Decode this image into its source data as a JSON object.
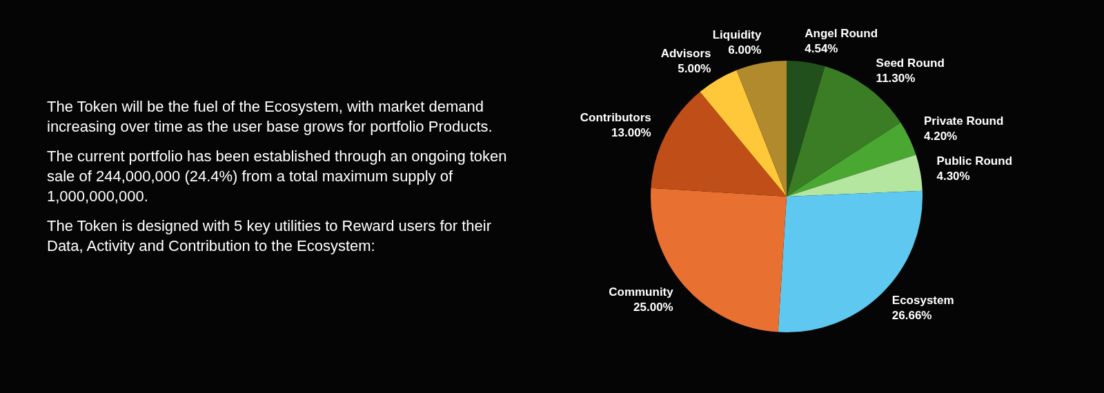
{
  "chart_data": {
    "type": "pie",
    "categories": [
      "Angel Round",
      "Seed Round",
      "Private Round",
      "Public Round",
      "Ecosystem",
      "Community",
      "Contributors",
      "Advisors",
      "Liquidity"
    ],
    "values": [
      4.54,
      11.3,
      4.2,
      4.3,
      26.66,
      25.0,
      13.0,
      5.0,
      6.0
    ],
    "value_labels": [
      "4.54%",
      "11.30%",
      "4.20%",
      "4.30%",
      "26.66%",
      "25.00%",
      "13.00%",
      "5.00%",
      "6.00%"
    ],
    "colors": [
      "#22501c",
      "#3a7d24",
      "#4aa832",
      "#b5e6a0",
      "#5ec8f0",
      "#e87030",
      "#c04e18",
      "#ffc83a",
      "#b08a2c"
    ],
    "legend": false,
    "annotations": [
      "The Token will be the fuel of the Ecosystem, with market demand increasing over time as the user base grows for portfolio Products.",
      "The current portfolio has been established through an ongoing token sale of 244,000,000 (24.4%) from a total maximum supply of 1,000,000,000.",
      "The Token is designed with 5 key utilities to Reward users for their Data, Activity and Contribution to the Ecosystem:"
    ]
  }
}
